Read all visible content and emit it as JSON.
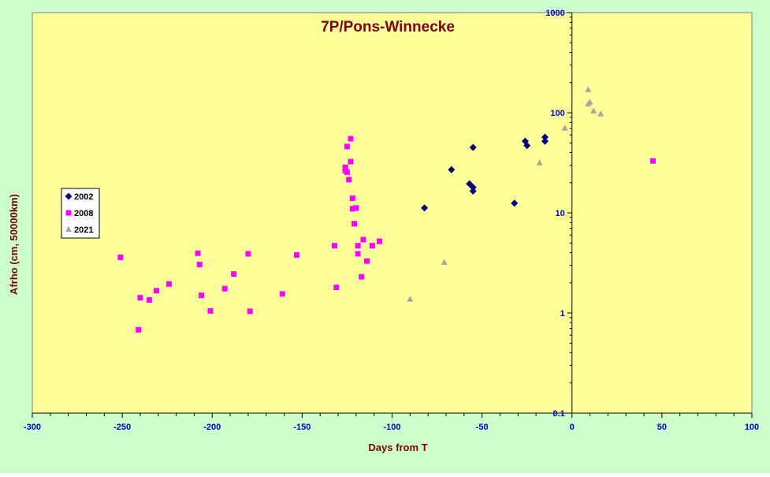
{
  "chart_data": {
    "type": "scatter",
    "title": "7P/Pons-Winnecke",
    "xlabel": "Days from  T",
    "ylabel": "Afrho (cm, 50000km)",
    "xlim": [
      -300,
      100
    ],
    "ylim": [
      0.1,
      1000
    ],
    "yscale": "log",
    "xticks": [
      -300,
      -250,
      -200,
      -150,
      -100,
      -50,
      0,
      50,
      100
    ],
    "xtick_labels": [
      "-300",
      "-250",
      "-200",
      "-150",
      "-100",
      "-50",
      "0",
      "50",
      "100"
    ],
    "yticks": [
      0.1,
      1,
      10,
      100,
      1000
    ],
    "ytick_labels": [
      "0.1",
      "1",
      "10",
      "100",
      "1000"
    ],
    "grid": false,
    "legend_position": "left",
    "colors": {
      "outer_background": "#CCFFCC",
      "plot_background": "#FFFF99",
      "title": "#800000",
      "axis_labels": "#800000",
      "tick_labels": "#0000CC",
      "axis": "#000000"
    },
    "series": [
      {
        "name": "2002",
        "marker": "diamond",
        "color": "#000080",
        "points": [
          [
            -82,
            11.2
          ],
          [
            -67,
            27
          ],
          [
            -57,
            19.5
          ],
          [
            -55,
            18
          ],
          [
            -55,
            16.5
          ],
          [
            -55,
            45
          ],
          [
            -32,
            12.5
          ],
          [
            -26,
            52
          ],
          [
            -25,
            47
          ],
          [
            -15,
            57
          ],
          [
            -15,
            52
          ]
        ]
      },
      {
        "name": "2008",
        "marker": "square",
        "color": "#FF00FF",
        "points": [
          [
            -251,
            3.6
          ],
          [
            -241,
            0.68
          ],
          [
            -240,
            1.42
          ],
          [
            -235,
            1.35
          ],
          [
            -231,
            1.67
          ],
          [
            -224,
            1.95
          ],
          [
            -208,
            3.95
          ],
          [
            -207,
            3.05
          ],
          [
            -206,
            1.5
          ],
          [
            -201,
            1.05
          ],
          [
            -193,
            1.75
          ],
          [
            -188,
            2.45
          ],
          [
            -180,
            3.9
          ],
          [
            -179,
            1.04
          ],
          [
            -161,
            1.55
          ],
          [
            -153,
            3.8
          ],
          [
            -132,
            4.7
          ],
          [
            -131,
            1.8
          ],
          [
            -126,
            28.5
          ],
          [
            -126,
            26.5
          ],
          [
            -125,
            25.5
          ],
          [
            -125,
            46
          ],
          [
            -124,
            21.5
          ],
          [
            -123,
            55
          ],
          [
            -123,
            32.5
          ],
          [
            -122,
            14
          ],
          [
            -122,
            11
          ],
          [
            -121,
            7.8
          ],
          [
            -120,
            11.2
          ],
          [
            -119,
            4.7
          ],
          [
            -119,
            3.9
          ],
          [
            -117,
            2.3
          ],
          [
            -116,
            5.4
          ],
          [
            -114,
            3.3
          ],
          [
            -111,
            4.7
          ],
          [
            -107,
            5.2
          ],
          [
            45,
            33
          ]
        ]
      },
      {
        "name": "2021",
        "marker": "triangle",
        "color": "#A6A6A6",
        "points": [
          [
            -90,
            1.37
          ],
          [
            -71,
            3.2
          ],
          [
            -18,
            31.5
          ],
          [
            -4,
            70
          ],
          [
            9,
            170
          ],
          [
            9,
            122
          ],
          [
            10,
            127
          ],
          [
            12,
            104
          ],
          [
            16,
            97
          ]
        ]
      }
    ]
  }
}
